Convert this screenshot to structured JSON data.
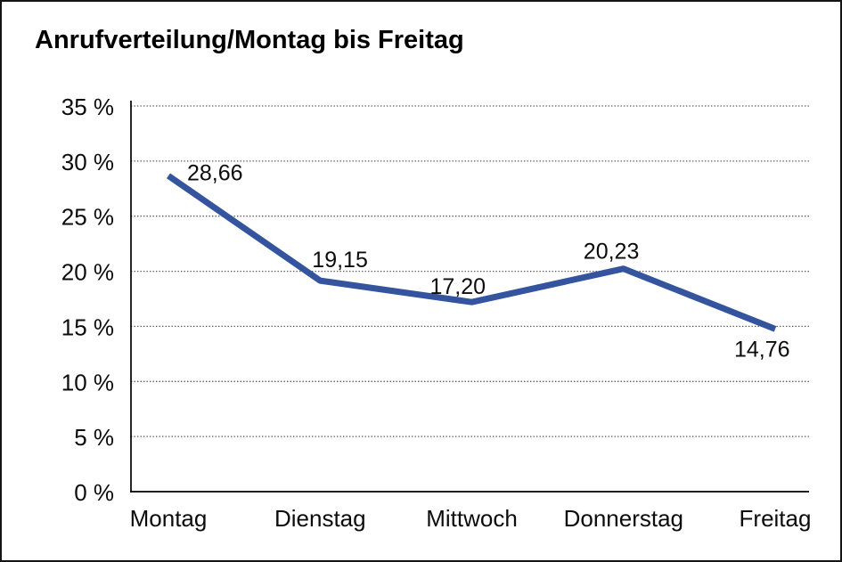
{
  "chart_data": {
    "type": "line",
    "title": "Anrufverteilung/Montag bis Freitag",
    "categories": [
      "Montag",
      "Dienstag",
      "Mittwoch",
      "Donnerstag",
      "Freitag"
    ],
    "values": [
      28.66,
      19.15,
      17.2,
      20.23,
      14.76
    ],
    "value_labels": [
      "28,66",
      "19,15",
      "17,20",
      "20,23",
      "14,76"
    ],
    "y_tick_labels": [
      "0 %",
      "5 %",
      "10 %",
      "15 %",
      "20 %",
      "25 %",
      "30 %",
      "35 %"
    ],
    "ylim": [
      0,
      35
    ],
    "y_step": 5,
    "unit": "%",
    "xlabel": "",
    "ylabel": "",
    "grid": "horizontal-dotted",
    "legend": "none",
    "line_color": "#34549E"
  }
}
